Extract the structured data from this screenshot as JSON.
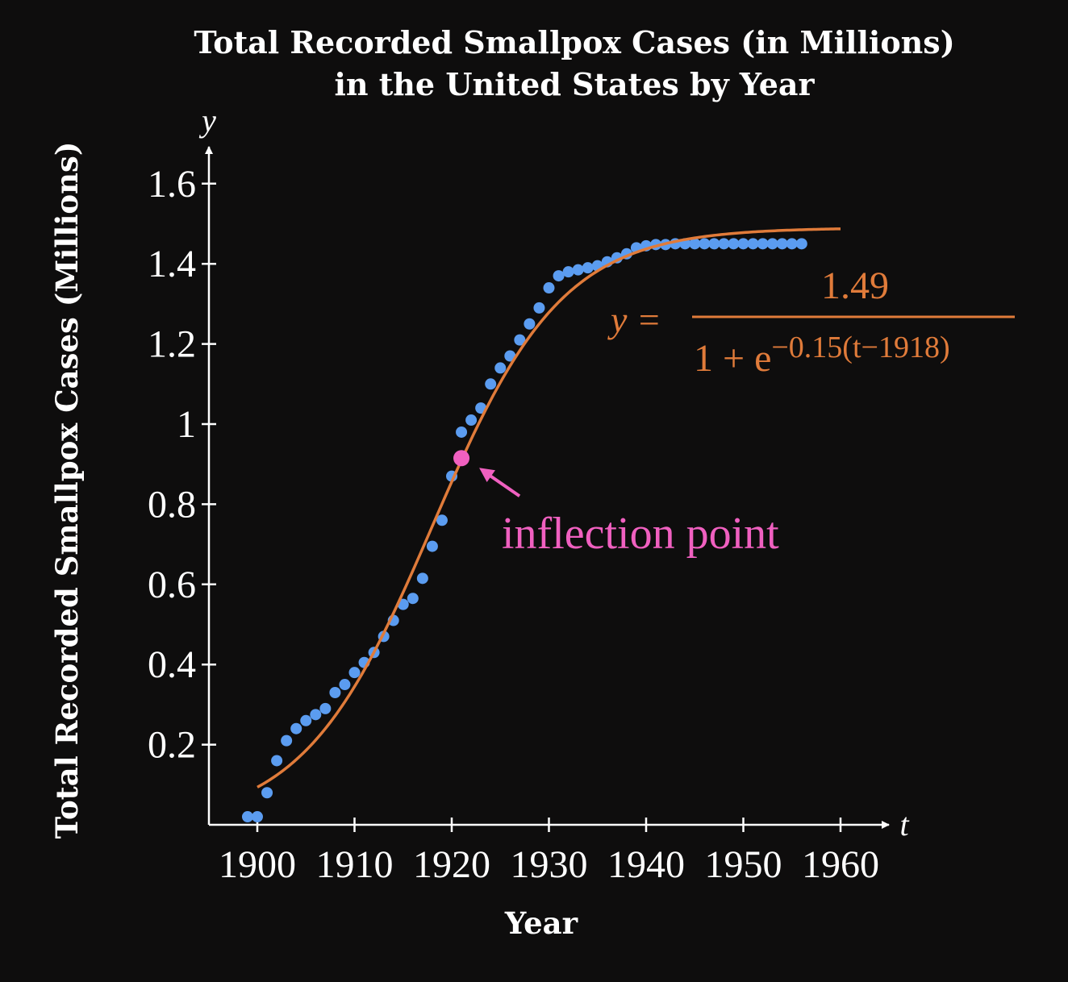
{
  "chart_data": {
    "type": "scatter",
    "title": "Total Recorded Smallpox Cases (in Millions)",
    "subtitle": "in the United States by Year",
    "xlabel": "Year",
    "ylabel": "Total Recorded Smallpox Cases (Millions)",
    "x_axis_var": "t",
    "y_axis_var": "y",
    "xlim": [
      1895,
      1965
    ],
    "ylim": [
      0,
      1.7
    ],
    "x_ticks": [
      1900,
      1910,
      1920,
      1930,
      1940,
      1950,
      1960
    ],
    "x_tick_labels": [
      "1900",
      "1910",
      "1920",
      "1930",
      "1940",
      "1950",
      "1960"
    ],
    "y_ticks": [
      0.2,
      0.4,
      0.6,
      0.8,
      1.0,
      1.2,
      1.4,
      1.6
    ],
    "y_tick_labels": [
      "0.2",
      "0.4",
      "0.6",
      "0.8",
      "1",
      "1.2",
      "1.4",
      "1.6"
    ],
    "grid": false,
    "series": [
      {
        "color": "#5b9cf0",
        "x": [
          1899,
          1900,
          1901,
          1902,
          1903,
          1904,
          1905,
          1906,
          1907,
          1908,
          1909,
          1910,
          1911,
          1912,
          1913,
          1914,
          1915,
          1916,
          1917,
          1918,
          1919,
          1920,
          1921,
          1922,
          1923,
          1924,
          1925,
          1926,
          1927,
          1928,
          1929,
          1930,
          1931,
          1932,
          1933,
          1934,
          1935,
          1936,
          1937,
          1938,
          1939,
          1940,
          1941,
          1942,
          1943,
          1944,
          1945,
          1946,
          1947,
          1948,
          1949,
          1950,
          1951,
          1952,
          1953,
          1954,
          1955,
          1956
        ],
        "y": [
          0.02,
          0.02,
          0.08,
          0.16,
          0.21,
          0.24,
          0.26,
          0.275,
          0.29,
          0.33,
          0.35,
          0.38,
          0.405,
          0.43,
          0.47,
          0.51,
          0.55,
          0.565,
          0.615,
          0.695,
          0.76,
          0.87,
          0.98,
          1.01,
          1.04,
          1.1,
          1.14,
          1.17,
          1.21,
          1.25,
          1.29,
          1.34,
          1.37,
          1.38,
          1.385,
          1.39,
          1.395,
          1.405,
          1.415,
          1.425,
          1.44,
          1.445,
          1.448,
          1.448,
          1.45,
          1.45,
          1.45,
          1.45,
          1.45,
          1.45,
          1.45,
          1.45,
          1.45,
          1.45,
          1.45,
          1.45,
          1.45,
          1.45
        ]
      },
      {
        "type": "line",
        "color": "#e07b3a",
        "formula": {
          "L": 1.49,
          "k": 0.15,
          "t0": 1918
        },
        "domain": [
          1900,
          1960
        ]
      }
    ],
    "equation": {
      "lhs": "y =",
      "numerator": "1.49",
      "denominator_base": "1 + e",
      "denominator_exponent": "−0.15(t−1918)"
    },
    "annotations": [
      {
        "text": "inflection point",
        "x": 1921,
        "y": 0.915,
        "color": "#f060c0"
      }
    ]
  }
}
